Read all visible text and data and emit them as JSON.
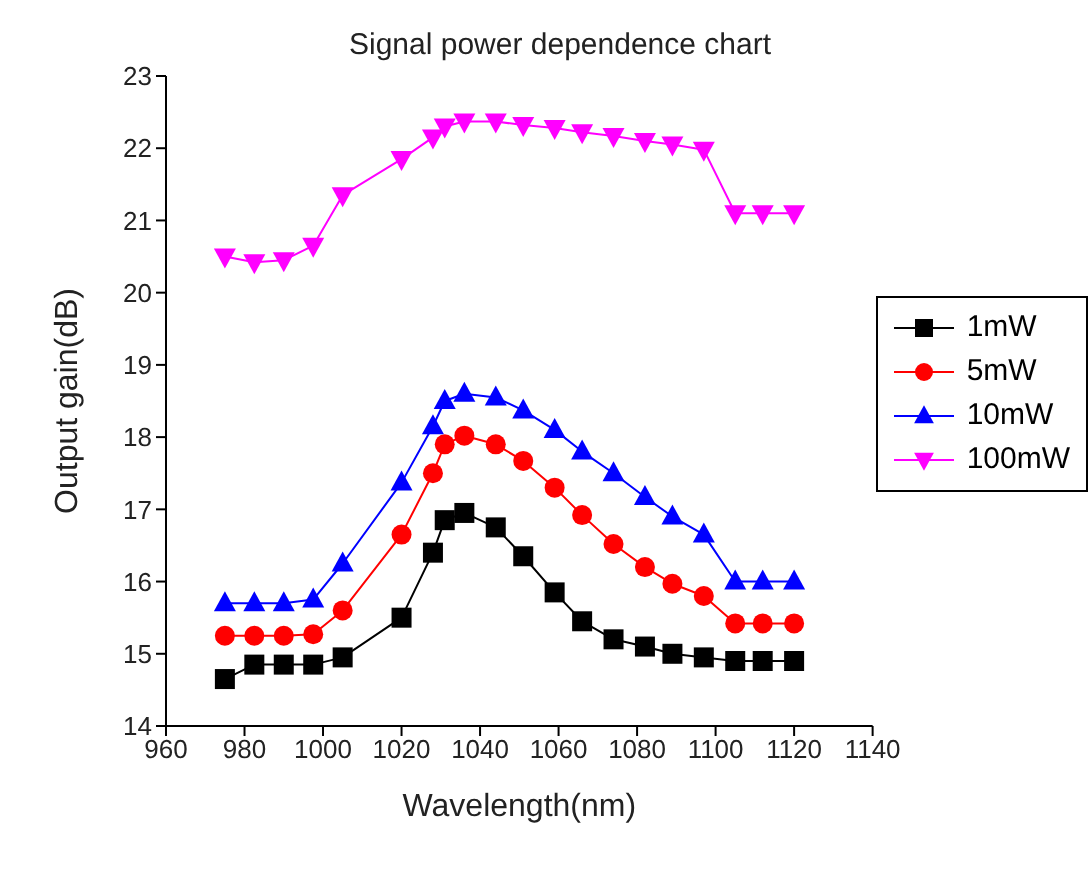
{
  "chart_data": {
    "type": "line",
    "title": "Signal power dependence chart",
    "xlabel": "Wavelength(nm)",
    "ylabel": "Output gain(dB)",
    "x": [
      975,
      982.5,
      990,
      997.5,
      1005,
      1020,
      1028,
      1031,
      1036,
      1044,
      1051,
      1059,
      1066,
      1074,
      1082,
      1089,
      1097,
      1105,
      1112,
      1120
    ],
    "series": [
      {
        "name": "1mW",
        "color": "#000000",
        "marker": "square",
        "values": [
          14.65,
          14.85,
          14.85,
          14.85,
          14.95,
          15.5,
          16.4,
          16.85,
          16.95,
          16.75,
          16.35,
          15.85,
          15.45,
          15.2,
          15.1,
          15.0,
          14.95,
          14.9,
          14.9,
          14.9
        ]
      },
      {
        "name": "5mW",
        "color": "#ff0000",
        "marker": "circle",
        "values": [
          15.25,
          15.25,
          15.25,
          15.27,
          15.6,
          16.65,
          17.5,
          17.9,
          18.02,
          17.9,
          17.67,
          17.3,
          16.92,
          16.52,
          16.2,
          15.97,
          15.8,
          15.42,
          15.42,
          15.42
        ]
      },
      {
        "name": "10mW",
        "color": "#0000ff",
        "marker": "triangle",
        "values": [
          15.7,
          15.7,
          15.7,
          15.75,
          16.25,
          17.37,
          18.15,
          18.5,
          18.6,
          18.55,
          18.37,
          18.1,
          17.8,
          17.5,
          17.17,
          16.9,
          16.65,
          16.0,
          16.0,
          16.0
        ]
      },
      {
        "name": "100mW",
        "color": "#ff00ff",
        "marker": "triangle-down",
        "values": [
          20.5,
          20.42,
          20.45,
          20.65,
          21.35,
          21.85,
          22.15,
          22.3,
          22.37,
          22.37,
          22.32,
          22.28,
          22.22,
          22.17,
          22.1,
          22.05,
          21.98,
          21.1,
          21.1,
          21.1
        ]
      }
    ],
    "xlim": [
      960,
      1140
    ],
    "xticks": [
      960,
      980,
      1000,
      1020,
      1040,
      1060,
      1080,
      1100,
      1120,
      1140
    ],
    "ylim": [
      14,
      23
    ],
    "yticks": [
      14,
      15,
      16,
      17,
      18,
      19,
      20,
      21,
      22,
      23
    ],
    "grid": false,
    "legend": "right"
  }
}
